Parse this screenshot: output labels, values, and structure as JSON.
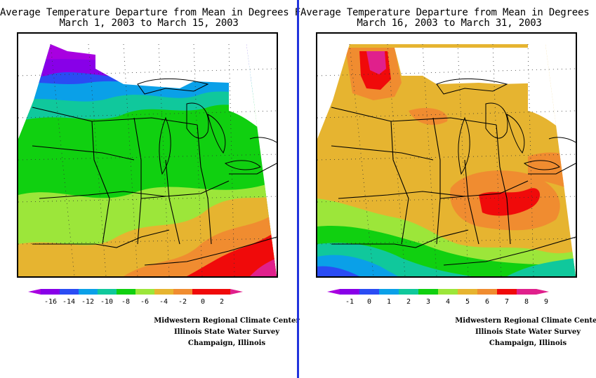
{
  "divider_color": "#2233dd",
  "panels": [
    {
      "title_line1": "Average Temperature Departure from Mean in Degrees F",
      "title_line2": "March 1, 2003 to March 15, 2003",
      "units": "Degrees F",
      "legend": {
        "labels": [
          "-16",
          "-14",
          "-12",
          "-10",
          "-8",
          "-6",
          "-4",
          "-2",
          "0",
          "2"
        ],
        "colors": [
          "#a800e0",
          "#8800e8",
          "#2a4cf4",
          "#0aa0e8",
          "#10c89c",
          "#10d010",
          "#9ce63a",
          "#e6b430",
          "#f08c30",
          "#f00a0a",
          "#e0208c"
        ]
      },
      "credits": [
        "Midwestern Regional Climate Center",
        "Illinois State Water Survey",
        "Champaign, Illinois"
      ]
    },
    {
      "title_line1": "Average Temperature Departure from Mean in Degrees F",
      "title_line2": "March 16, 2003 to March 31, 2003",
      "units": "Degrees F",
      "legend": {
        "labels": [
          "-1",
          "0",
          "1",
          "2",
          "3",
          "4",
          "5",
          "6",
          "7",
          "8",
          "9"
        ],
        "colors": [
          "#a800e0",
          "#8800e8",
          "#2a4cf4",
          "#0aa0e8",
          "#10c89c",
          "#10d010",
          "#9ce63a",
          "#e6b430",
          "#f08c30",
          "#f00a0a",
          "#e0208c",
          "#e0208c"
        ]
      },
      "credits": [
        "Midwestern Regional Climate Center",
        "Illinois State Water Survey",
        "Champaign, Illinois"
      ]
    }
  ]
}
